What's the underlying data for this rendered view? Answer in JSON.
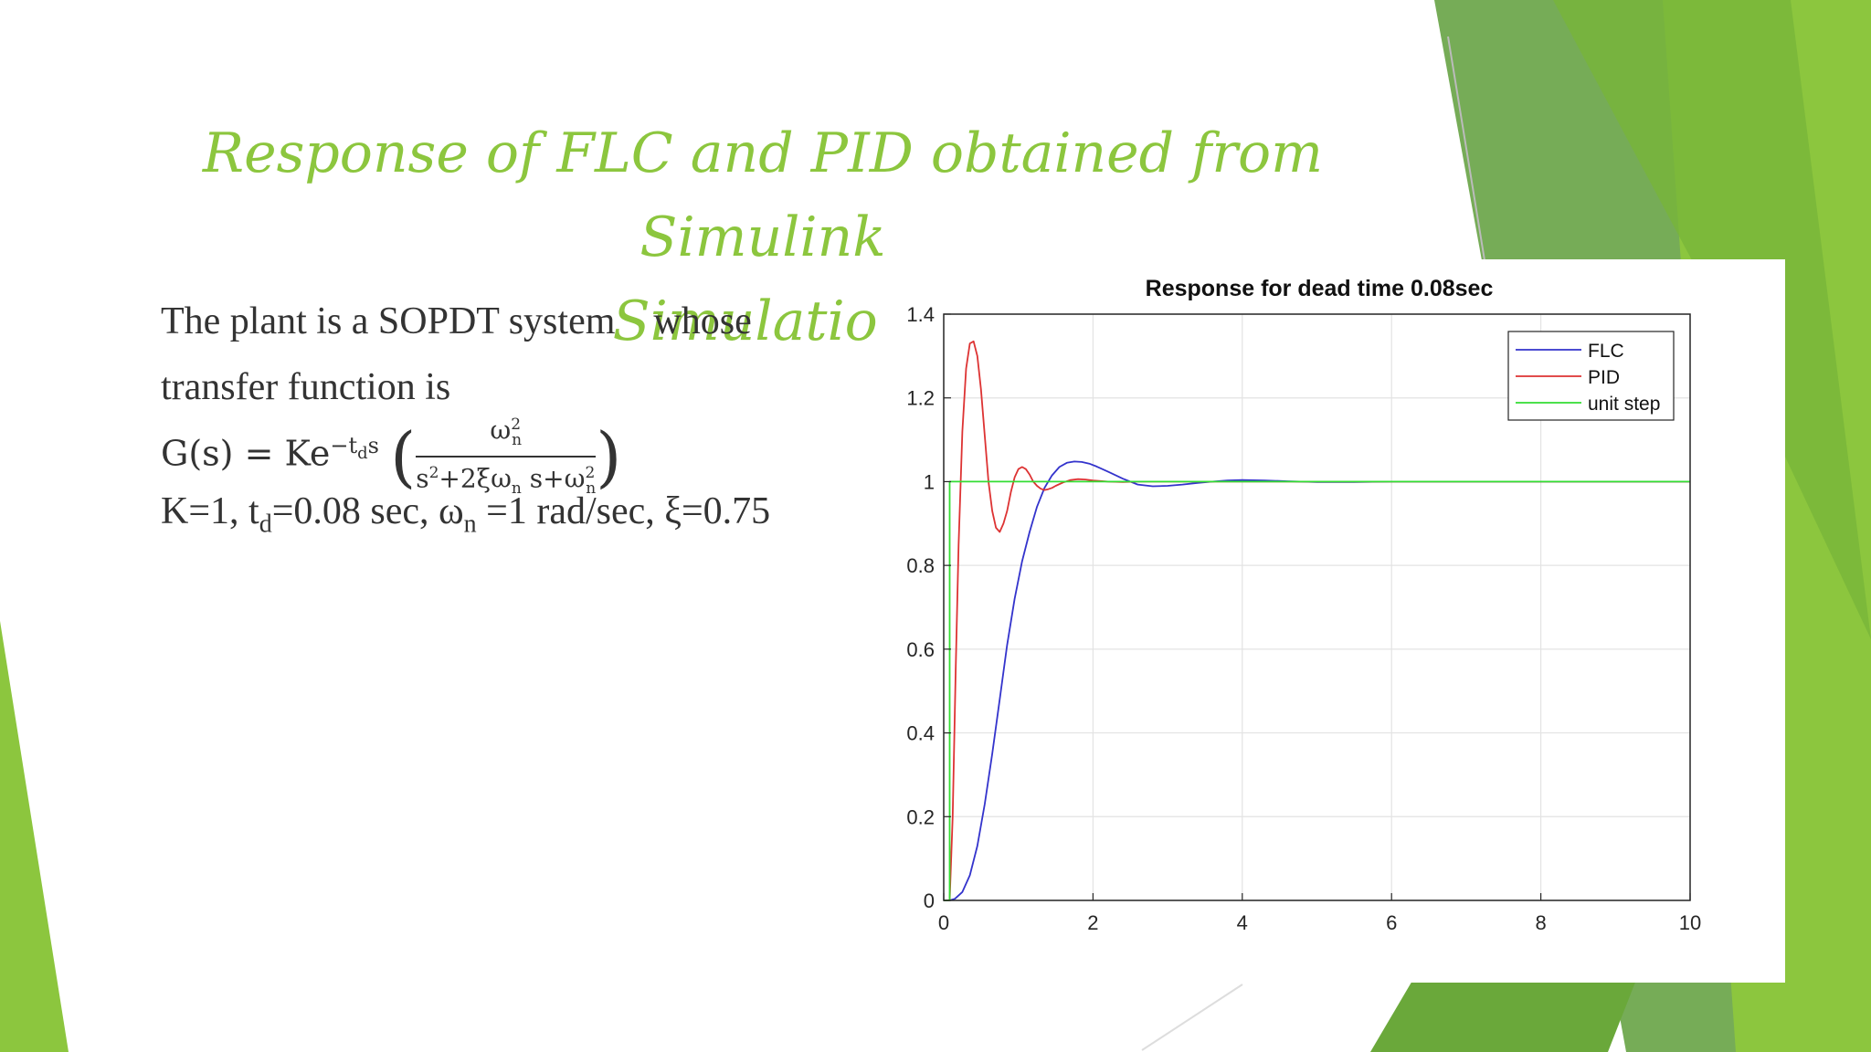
{
  "slide": {
    "title_line1": "Response of FLC and PID obtained from Simulink",
    "title_line2": "Simulation",
    "text_line1_a": "The plant is a SOPDT system",
    "text_line1_b": "whose",
    "text_line2": "transfer function is",
    "tf_lhs": "G(s) = Ke",
    "tf_exp": "−t",
    "tf_exp_sub": "d",
    "tf_exp_s": "s",
    "tf_num": "ω",
    "tf_num_sup": "2",
    "tf_num_sub": "n",
    "tf_den_a": "s",
    "tf_den_a_sup": "2",
    "tf_den_b": "+2ξω",
    "tf_den_b_sub": "n",
    "tf_den_c": " s+ω",
    "tf_den_c_sup": "2",
    "tf_den_c_sub": "n",
    "params_a": "K=1, t",
    "params_a_sub": "d",
    "params_b": "=0.08 sec, ω",
    "params_b_sub": "n",
    "params_c": " =1 rad/sec, ξ=0.75",
    "colors": {
      "accent": "#8cc63e",
      "dark_green": "#5e9e3a",
      "text": "#333333"
    }
  },
  "chart_data": {
    "type": "line",
    "title": "Response for dead time 0.08sec",
    "xlim": [
      0,
      10
    ],
    "ylim": [
      0,
      1.4
    ],
    "xticks": [
      "0",
      "2",
      "4",
      "6",
      "8",
      "10"
    ],
    "yticks": [
      "0",
      "0.2",
      "0.4",
      "0.6",
      "0.8",
      "1",
      "1.2",
      "1.4"
    ],
    "grid": true,
    "legend_position": "top-right",
    "series": [
      {
        "name": "FLC",
        "color": "#3333cc",
        "x": [
          0,
          0.08,
          0.15,
          0.25,
          0.35,
          0.45,
          0.55,
          0.65,
          0.75,
          0.85,
          0.95,
          1.05,
          1.15,
          1.25,
          1.35,
          1.45,
          1.55,
          1.65,
          1.75,
          1.85,
          1.95,
          2.05,
          2.2,
          2.4,
          2.6,
          2.8,
          3.0,
          3.2,
          3.4,
          3.6,
          3.8,
          4.0,
          4.3,
          4.6,
          5.0,
          5.5,
          6.0,
          7.0,
          8.0,
          9.0,
          10.0
        ],
        "y": [
          0,
          0,
          0.004,
          0.02,
          0.06,
          0.13,
          0.23,
          0.35,
          0.48,
          0.61,
          0.72,
          0.81,
          0.88,
          0.94,
          0.985,
          1.015,
          1.035,
          1.045,
          1.048,
          1.047,
          1.043,
          1.036,
          1.024,
          1.007,
          0.993,
          0.989,
          0.99,
          0.993,
          0.997,
          1.0,
          1.003,
          1.004,
          1.003,
          1.001,
          0.999,
          0.999,
          1.0,
          1.0,
          1.0,
          1.0,
          1.0
        ]
      },
      {
        "name": "PID",
        "color": "#dd3333",
        "x": [
          0,
          0.08,
          0.12,
          0.16,
          0.2,
          0.25,
          0.3,
          0.35,
          0.4,
          0.45,
          0.5,
          0.55,
          0.6,
          0.65,
          0.7,
          0.75,
          0.8,
          0.85,
          0.9,
          0.95,
          1.0,
          1.05,
          1.1,
          1.15,
          1.2,
          1.25,
          1.3,
          1.35,
          1.4,
          1.45,
          1.5,
          1.6,
          1.7,
          1.8,
          1.9,
          2.0,
          2.2,
          2.4,
          2.6,
          3.0,
          3.5,
          4.0,
          5.0,
          6.0,
          8.0,
          10.0
        ],
        "y": [
          0,
          0,
          0.2,
          0.55,
          0.85,
          1.12,
          1.27,
          1.33,
          1.335,
          1.3,
          1.22,
          1.11,
          1.0,
          0.93,
          0.89,
          0.88,
          0.9,
          0.93,
          0.975,
          1.01,
          1.03,
          1.035,
          1.03,
          1.017,
          1.0,
          0.99,
          0.983,
          0.98,
          0.982,
          0.985,
          0.99,
          0.998,
          1.004,
          1.006,
          1.005,
          1.003,
          1.0,
          0.999,
          1.0,
          1.0,
          1.0,
          1.0,
          1.0,
          1.0,
          1.0,
          1.0
        ]
      },
      {
        "name": "unit step",
        "color": "#33dd33",
        "x": [
          0,
          0.08,
          0.08,
          10
        ],
        "y": [
          0,
          0,
          1,
          1
        ]
      }
    ]
  }
}
